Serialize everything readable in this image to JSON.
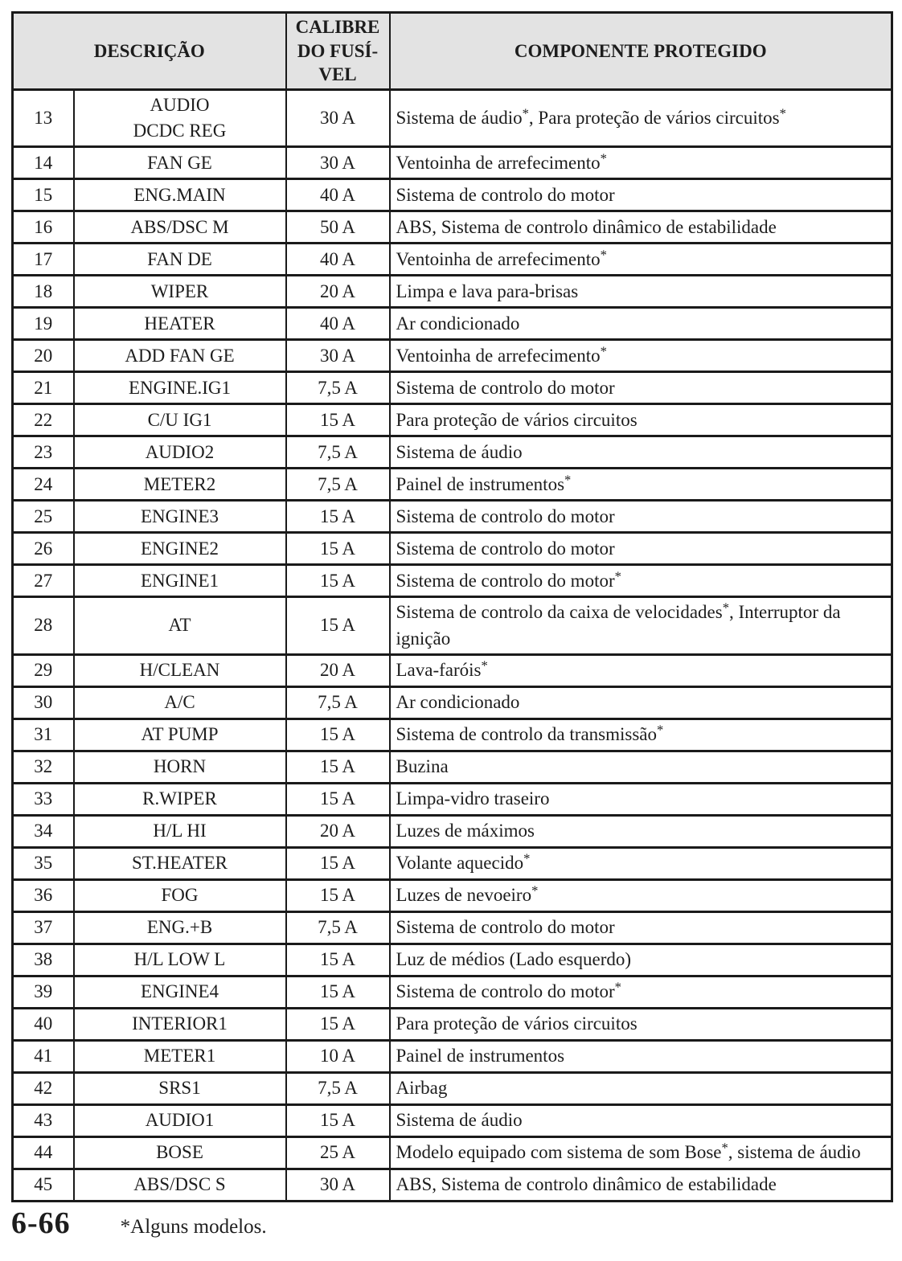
{
  "colors": {
    "header_background": "#e3e3e3",
    "border": "#1a1a1a",
    "text": "#1d1d1d"
  },
  "table": {
    "headers": {
      "description": "DESCRIÇÃO",
      "fuse_rating": "CALIBRE\nDO FUSÍ-\nVEL",
      "protected_component": "COMPONENTE PROTEGIDO"
    },
    "rows": [
      {
        "num": "13",
        "desc": "AUDIO\nDCDC REG",
        "amp": "30 A",
        "comp": "Sistema de áudio*, Para proteção de vários circuitos*"
      },
      {
        "num": "14",
        "desc": "FAN GE",
        "amp": "30 A",
        "comp": "Ventoinha de arrefecimento*"
      },
      {
        "num": "15",
        "desc": "ENG.MAIN",
        "amp": "40 A",
        "comp": "Sistema de controlo do motor"
      },
      {
        "num": "16",
        "desc": "ABS/DSC M",
        "amp": "50 A",
        "comp": "ABS, Sistema de controlo dinâmico de estabilidade"
      },
      {
        "num": "17",
        "desc": "FAN DE",
        "amp": "40 A",
        "comp": "Ventoinha de arrefecimento*"
      },
      {
        "num": "18",
        "desc": "WIPER",
        "amp": "20 A",
        "comp": "Limpa e lava para-brisas"
      },
      {
        "num": "19",
        "desc": "HEATER",
        "amp": "40 A",
        "comp": "Ar condicionado"
      },
      {
        "num": "20",
        "desc": "ADD FAN GE",
        "amp": "30 A",
        "comp": "Ventoinha de arrefecimento*"
      },
      {
        "num": "21",
        "desc": "ENGINE.IG1",
        "amp": "7,5 A",
        "comp": "Sistema de controlo do motor"
      },
      {
        "num": "22",
        "desc": "C/U IG1",
        "amp": "15 A",
        "comp": "Para proteção de vários circuitos"
      },
      {
        "num": "23",
        "desc": "AUDIO2",
        "amp": "7,5 A",
        "comp": "Sistema de áudio"
      },
      {
        "num": "24",
        "desc": "METER2",
        "amp": "7,5 A",
        "comp": "Painel de instrumentos*"
      },
      {
        "num": "25",
        "desc": "ENGINE3",
        "amp": "15 A",
        "comp": "Sistema de controlo do motor"
      },
      {
        "num": "26",
        "desc": "ENGINE2",
        "amp": "15 A",
        "comp": "Sistema de controlo do motor"
      },
      {
        "num": "27",
        "desc": "ENGINE1",
        "amp": "15 A",
        "comp": "Sistema de controlo do motor*"
      },
      {
        "num": "28",
        "desc": "AT",
        "amp": "15 A",
        "comp": "Sistema de controlo da caixa de velocidades*, Interruptor da ignição"
      },
      {
        "num": "29",
        "desc": "H/CLEAN",
        "amp": "20 A",
        "comp": "Lava-faróis*"
      },
      {
        "num": "30",
        "desc": "A/C",
        "amp": "7,5 A",
        "comp": "Ar condicionado"
      },
      {
        "num": "31",
        "desc": "AT PUMP",
        "amp": "15 A",
        "comp": "Sistema de controlo da transmissão*"
      },
      {
        "num": "32",
        "desc": "HORN",
        "amp": "15 A",
        "comp": "Buzina"
      },
      {
        "num": "33",
        "desc": "R.WIPER",
        "amp": "15 A",
        "comp": "Limpa-vidro traseiro"
      },
      {
        "num": "34",
        "desc": "H/L HI",
        "amp": "20 A",
        "comp": "Luzes de máximos"
      },
      {
        "num": "35",
        "desc": "ST.HEATER",
        "amp": "15 A",
        "comp": "Volante aquecido*"
      },
      {
        "num": "36",
        "desc": "FOG",
        "amp": "15 A",
        "comp": "Luzes de nevoeiro*"
      },
      {
        "num": "37",
        "desc": "ENG.+B",
        "amp": "7,5 A",
        "comp": "Sistema de controlo do motor"
      },
      {
        "num": "38",
        "desc": "H/L LOW L",
        "amp": "15 A",
        "comp": "Luz de médios (Lado esquerdo)"
      },
      {
        "num": "39",
        "desc": "ENGINE4",
        "amp": "15 A",
        "comp": "Sistema de controlo do motor*"
      },
      {
        "num": "40",
        "desc": "INTERIOR1",
        "amp": "15 A",
        "comp": "Para proteção de vários circuitos"
      },
      {
        "num": "41",
        "desc": "METER1",
        "amp": "10 A",
        "comp": "Painel de instrumentos"
      },
      {
        "num": "42",
        "desc": "SRS1",
        "amp": "7,5 A",
        "comp": "Airbag"
      },
      {
        "num": "43",
        "desc": "AUDIO1",
        "amp": "15 A",
        "comp": "Sistema de áudio"
      },
      {
        "num": "44",
        "desc": "BOSE",
        "amp": "25 A",
        "comp": "Modelo equipado com sistema de som Bose*, sistema de áudio"
      },
      {
        "num": "45",
        "desc": "ABS/DSC S",
        "amp": "30 A",
        "comp": "ABS, Sistema de controlo dinâmico de estabilidade"
      }
    ]
  },
  "footer": {
    "page_number": "6-66",
    "note": "*Alguns modelos."
  }
}
